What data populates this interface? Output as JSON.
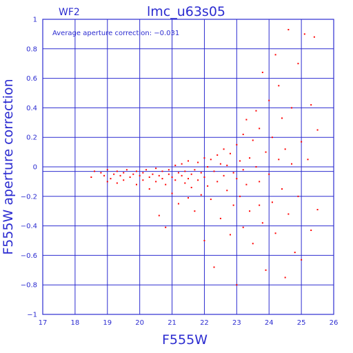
{
  "chart_data": {
    "type": "scatter",
    "title": "lmc_u63s05",
    "chip_label": "WF2",
    "annotation": "Average aperture correction: −0.031",
    "xlabel": "F555W",
    "ylabel": "F555W aperture correction",
    "xlim": [
      17,
      26
    ],
    "ylim": [
      -1,
      1
    ],
    "x_ticks": [
      "17",
      "18",
      "19",
      "20",
      "21",
      "22",
      "23",
      "24",
      "25",
      "26"
    ],
    "y_ticks": [
      "−1",
      "−0.8",
      "−0.6",
      "−0.4",
      "−0.2",
      "0",
      "0.2",
      "0.4",
      "0.6",
      "0.8",
      "1"
    ],
    "grid": true,
    "average_line": -0.031,
    "colors": {
      "axes": "#2b2bd0",
      "points": "#ff0000"
    },
    "series": [
      {
        "values": [
          [
            18.5,
            -0.07
          ],
          [
            18.6,
            -0.03
          ],
          [
            18.8,
            -0.04
          ],
          [
            18.9,
            -0.06
          ],
          [
            19.0,
            -0.02
          ],
          [
            19.0,
            -0.1
          ],
          [
            19.1,
            -0.08
          ],
          [
            19.2,
            -0.05
          ],
          [
            19.3,
            -0.03
          ],
          [
            19.3,
            -0.11
          ],
          [
            19.4,
            -0.06
          ],
          [
            19.5,
            -0.04
          ],
          [
            19.5,
            -0.09
          ],
          [
            19.6,
            -0.02
          ],
          [
            19.7,
            -0.07
          ],
          [
            19.8,
            -0.05
          ],
          [
            19.9,
            -0.12
          ],
          [
            19.9,
            -0.03
          ],
          [
            20.0,
            -0.06
          ],
          [
            20.1,
            -0.04
          ],
          [
            20.1,
            -0.09
          ],
          [
            20.2,
            -0.02
          ],
          [
            20.3,
            -0.15
          ],
          [
            20.3,
            -0.07
          ],
          [
            20.4,
            -0.05
          ],
          [
            20.5,
            -0.1
          ],
          [
            20.5,
            -0.01
          ],
          [
            20.6,
            -0.06
          ],
          [
            20.6,
            -0.33
          ],
          [
            20.7,
            -0.03
          ],
          [
            20.7,
            -0.08
          ],
          [
            20.8,
            -0.41
          ],
          [
            20.8,
            -0.12
          ],
          [
            20.9,
            -0.05
          ],
          [
            20.9,
            -0.02
          ],
          [
            21.0,
            -0.07
          ],
          [
            21.0,
            -0.18
          ],
          [
            21.1,
            0.01
          ],
          [
            21.1,
            -0.09
          ],
          [
            21.2,
            -0.04
          ],
          [
            21.2,
            -0.25
          ],
          [
            21.3,
            -0.06
          ],
          [
            21.3,
            0.02
          ],
          [
            21.4,
            -0.11
          ],
          [
            21.4,
            -0.03
          ],
          [
            21.5,
            -0.08
          ],
          [
            21.5,
            0.04
          ],
          [
            21.6,
            -0.14
          ],
          [
            21.6,
            -0.05
          ],
          [
            21.7,
            -0.3
          ],
          [
            21.7,
            -0.02
          ],
          [
            21.8,
            0.03
          ],
          [
            21.8,
            -0.09
          ],
          [
            21.9,
            -0.19
          ],
          [
            21.9,
            -0.04
          ],
          [
            22.0,
            0.06
          ],
          [
            22.0,
            -0.5
          ],
          [
            22.0,
            -0.07
          ],
          [
            22.1,
            -0.13
          ],
          [
            22.1,
            0.0
          ],
          [
            22.2,
            -0.22
          ],
          [
            22.2,
            0.05
          ],
          [
            22.3,
            -0.03
          ],
          [
            22.3,
            -0.68
          ],
          [
            22.4,
            0.08
          ],
          [
            22.4,
            -0.1
          ],
          [
            22.5,
            -0.35
          ],
          [
            22.5,
            0.02
          ],
          [
            22.6,
            -0.06
          ],
          [
            22.6,
            0.12
          ],
          [
            22.7,
            -0.16
          ],
          [
            22.7,
            0.01
          ],
          [
            22.8,
            -0.46
          ],
          [
            22.8,
            0.09
          ],
          [
            22.9,
            -0.04
          ],
          [
            22.9,
            -0.26
          ],
          [
            23.0,
            0.15
          ],
          [
            23.0,
            -0.08
          ],
          [
            23.0,
            -0.8
          ],
          [
            23.1,
            0.04
          ],
          [
            23.1,
            -0.2
          ],
          [
            23.2,
            0.22
          ],
          [
            23.2,
            -0.02
          ],
          [
            23.3,
            -0.12
          ],
          [
            23.3,
            0.32
          ],
          [
            23.4,
            0.06
          ],
          [
            23.4,
            -0.3
          ],
          [
            23.5,
            0.18
          ],
          [
            23.5,
            -0.52
          ],
          [
            23.6,
            0.0
          ],
          [
            23.6,
            0.38
          ],
          [
            23.7,
            -0.1
          ],
          [
            23.7,
            0.26
          ],
          [
            23.8,
            0.64
          ],
          [
            23.8,
            -0.38
          ],
          [
            23.9,
            0.1
          ],
          [
            23.9,
            -0.7
          ],
          [
            24.0,
            0.45
          ],
          [
            24.0,
            -0.05
          ],
          [
            24.1,
            0.2
          ],
          [
            24.1,
            -0.24
          ],
          [
            24.2,
            0.76
          ],
          [
            24.2,
            -0.45
          ],
          [
            24.3,
            0.05
          ],
          [
            24.3,
            0.55
          ],
          [
            24.4,
            -0.15
          ],
          [
            24.4,
            0.33
          ],
          [
            24.5,
            -0.75
          ],
          [
            24.5,
            0.12
          ],
          [
            24.6,
            0.93
          ],
          [
            24.6,
            -0.32
          ],
          [
            24.7,
            0.02
          ],
          [
            24.7,
            0.4
          ],
          [
            24.8,
            -0.58
          ],
          [
            24.9,
            0.7
          ],
          [
            24.9,
            -0.2
          ],
          [
            25.0,
            0.17
          ],
          [
            25.0,
            -0.63
          ],
          [
            25.1,
            0.9
          ],
          [
            25.2,
            0.05
          ],
          [
            25.3,
            0.42
          ],
          [
            25.3,
            -0.43
          ],
          [
            25.4,
            0.88
          ],
          [
            25.5,
            -0.29
          ],
          [
            25.5,
            0.25
          ],
          [
            23.7,
            -0.26
          ],
          [
            23.2,
            -0.41
          ],
          [
            21.5,
            -0.21
          ]
        ]
      }
    ]
  }
}
